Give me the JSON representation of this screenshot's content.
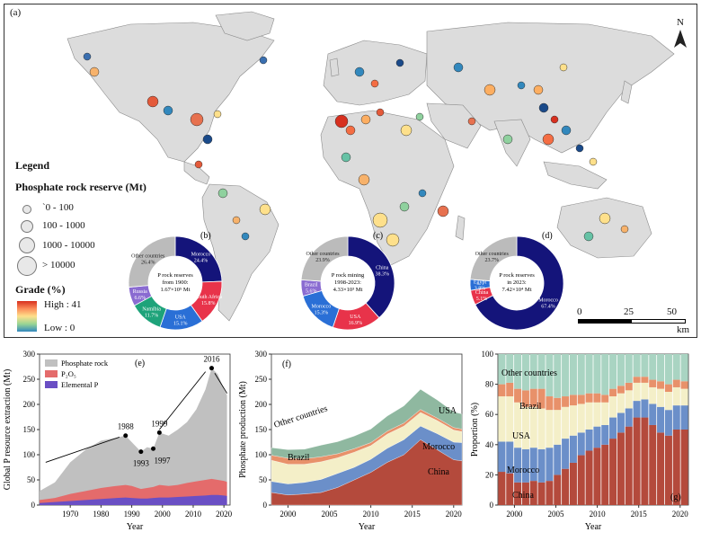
{
  "map": {
    "label": "(a)",
    "north": "N",
    "legend_title": "Legend",
    "reserve_title": "Phosphate rock reserve (Mt)",
    "reserve_classes": [
      "`0 - 100",
      "100 - 1000",
      "1000 - 10000",
      "> 10000"
    ],
    "grade_title": "Grade (%)",
    "grade_high": "High : 41",
    "grade_low": "Low : 0",
    "scale_ticks": [
      "0",
      "25",
      "50"
    ],
    "scale_unit": "km",
    "colors": {
      "land": "#dcdcdc",
      "ocean": "#ffffff",
      "grade_high": "#d7301f",
      "grade_mid": "#fee08b",
      "grade_low": "#3288bd"
    }
  },
  "donuts": [
    {
      "label": "(b)",
      "center_text": [
        "P rock reserves",
        "from 1900:",
        "1.67×10⁵ Mt"
      ],
      "slices": [
        {
          "name": "Morocco",
          "pct": "24.4%",
          "value": 24.4,
          "color": "#14147a"
        },
        {
          "name": "South Africa",
          "pct": "15.8%",
          "value": 15.8,
          "color": "#e8334a"
        },
        {
          "name": "USA",
          "pct": "15.1%",
          "value": 15.1,
          "color": "#2a6fd6"
        },
        {
          "name": "Namibia",
          "pct": "11.7%",
          "value": 11.7,
          "color": "#1ea37a"
        },
        {
          "name": "Russia",
          "pct": "6.6%",
          "value": 6.6,
          "color": "#8a6bd1"
        },
        {
          "name": "Other countries",
          "pct": "26.4%",
          "value": 26.4,
          "color": "#bbbbbb"
        }
      ]
    },
    {
      "label": "(c)",
      "center_text": [
        "P rock mining",
        "1998-2023:",
        "4.33×10³ Mt"
      ],
      "slices": [
        {
          "name": "China",
          "pct": "38.3%",
          "value": 38.3,
          "color": "#14147a"
        },
        {
          "name": "USA",
          "pct": "16.9%",
          "value": 16.9,
          "color": "#e8334a"
        },
        {
          "name": "Morocco",
          "pct": "15.3%",
          "value": 15.3,
          "color": "#2a6fd6"
        },
        {
          "name": "Brazil",
          "pct": "5.6%",
          "value": 5.6,
          "color": "#8a6bd1"
        },
        {
          "name": "Other countries",
          "pct": "23.9%",
          "value": 23.9,
          "color": "#bbbbbb"
        }
      ]
    },
    {
      "label": "(d)",
      "center_text": [
        "P rock reserves",
        "in 2023:",
        "7.42×10⁴ Mt"
      ],
      "slices": [
        {
          "name": "Morocco",
          "pct": "67.4%",
          "value": 67.4,
          "color": "#14147a"
        },
        {
          "name": "China",
          "pct": "5.1%",
          "value": 5.1,
          "color": "#e8334a"
        },
        {
          "name": "Egypt",
          "pct": "3.8%",
          "value": 3.8,
          "color": "#2a6fd6"
        },
        {
          "name": "Other countries",
          "pct": "23.7%",
          "value": 23.7,
          "color": "#bbbbbb"
        }
      ]
    }
  ],
  "chart_data": [
    {
      "panel": "(e)",
      "type": "area",
      "ylabel": "Global P resource extraction (Mt)",
      "xlabel": "Year",
      "xlim": [
        1960,
        2022
      ],
      "ylim": [
        0,
        300
      ],
      "xticks": [
        1970,
        1980,
        1990,
        2000,
        2010,
        2020
      ],
      "yticks": [
        0,
        50,
        100,
        150,
        200,
        250,
        300
      ],
      "legend": [
        "Phosphate rock",
        "P₂O₅",
        "Elemental P"
      ],
      "colors": [
        "#c0c0c0",
        "#e46b6b",
        "#6a4fc4"
      ],
      "x": [
        1960,
        1965,
        1970,
        1975,
        1980,
        1985,
        1988,
        1990,
        1993,
        1995,
        1997,
        1999,
        2002,
        2005,
        2008,
        2011,
        2014,
        2016,
        2018,
        2020,
        2021
      ],
      "series": [
        {
          "name": "Phosphate rock",
          "values": [
            28,
            45,
            85,
            110,
            128,
            134,
            138,
            125,
            106,
            115,
            112,
            144,
            138,
            150,
            165,
            190,
            230,
            272,
            260,
            230,
            218
          ]
        },
        {
          "name": "P₂O₅",
          "values": [
            10,
            14,
            22,
            28,
            34,
            38,
            40,
            38,
            32,
            34,
            36,
            40,
            38,
            40,
            44,
            47,
            50,
            52,
            50,
            48,
            46
          ]
        },
        {
          "name": "Elemental P",
          "values": [
            4,
            6,
            8,
            10,
            12,
            14,
            15,
            14,
            13,
            13,
            14,
            15,
            15,
            16,
            17,
            18,
            19,
            20,
            20,
            19,
            18
          ]
        }
      ],
      "annotations": [
        {
          "text": "1988",
          "x": 1988,
          "y": 138
        },
        {
          "text": "1993",
          "x": 1993,
          "y": 106
        },
        {
          "text": "1997",
          "x": 1997,
          "y": 112
        },
        {
          "text": "1999",
          "x": 1999,
          "y": 144
        },
        {
          "text": "2016",
          "x": 2016,
          "y": 272
        }
      ]
    },
    {
      "panel": "(f)",
      "type": "area",
      "ylabel": "Phosphate production (Mt)",
      "xlabel": "Year",
      "xlim": [
        1998,
        2021
      ],
      "ylim": [
        0,
        300
      ],
      "xticks": [
        2000,
        2005,
        2010,
        2015,
        2020
      ],
      "yticks": [
        0,
        50,
        100,
        150,
        200,
        250,
        300
      ],
      "x": [
        1998,
        2000,
        2002,
        2004,
        2006,
        2008,
        2010,
        2012,
        2014,
        2016,
        2018,
        2020,
        2021
      ],
      "series": [
        {
          "name": "China",
          "values": [
            25,
            20,
            22,
            25,
            35,
            50,
            65,
            85,
            100,
            130,
            110,
            90,
            88
          ]
        },
        {
          "name": "Morocco",
          "values": [
            22,
            22,
            23,
            26,
            28,
            25,
            26,
            28,
            30,
            27,
            32,
            35,
            36
          ]
        },
        {
          "name": "USA",
          "values": [
            42,
            39,
            36,
            35,
            31,
            30,
            27,
            28,
            27,
            27,
            26,
            24,
            22
          ]
        },
        {
          "name": "Brazil",
          "values": [
            10,
            12,
            11,
            10,
            8,
            7,
            6,
            6,
            6,
            6,
            5,
            5,
            5
          ]
        },
        {
          "name": "Other countries",
          "values": [
            15,
            17,
            19,
            23,
            24,
            25,
            27,
            30,
            34,
            40,
            36,
            31,
            30
          ]
        }
      ],
      "labels": [
        "Other countries",
        "Brazil",
        "USA",
        "Morocco",
        "China"
      ],
      "colors": [
        "#b44a3c",
        "#6b8fc9",
        "#f4efc8",
        "#e8916a",
        "#8fb8a0"
      ]
    },
    {
      "panel": "(g)",
      "type": "bar",
      "ylabel": "Proportion (%)",
      "xlabel": "Year",
      "xlim": [
        1998,
        2021
      ],
      "ylim": [
        0,
        100
      ],
      "xticks": [
        2000,
        2005,
        2010,
        2015,
        2020
      ],
      "yticks": [
        0,
        20,
        40,
        60,
        80,
        100
      ],
      "categories": [
        1998,
        1999,
        2000,
        2001,
        2002,
        2003,
        2004,
        2005,
        2006,
        2007,
        2008,
        2009,
        2010,
        2011,
        2012,
        2013,
        2014,
        2015,
        2016,
        2017,
        2018,
        2019,
        2020,
        2021
      ],
      "series": [
        {
          "name": "China",
          "values": [
            22,
            21,
            15,
            15,
            16,
            15,
            16,
            20,
            24,
            28,
            33,
            36,
            38,
            40,
            44,
            48,
            52,
            58,
            58,
            53,
            48,
            46,
            50,
            50
          ]
        },
        {
          "name": "Morocco",
          "values": [
            20,
            21,
            23,
            22,
            22,
            22,
            22,
            20,
            20,
            18,
            15,
            14,
            14,
            13,
            14,
            13,
            12,
            11,
            12,
            14,
            17,
            17,
            16,
            16
          ]
        },
        {
          "name": "USA",
          "values": [
            30,
            30,
            30,
            28,
            27,
            27,
            25,
            23,
            21,
            20,
            19,
            18,
            16,
            15,
            14,
            13,
            12,
            12,
            11,
            11,
            12,
            12,
            12,
            11
          ]
        },
        {
          "name": "Brazil",
          "values": [
            8,
            9,
            9,
            11,
            12,
            13,
            9,
            8,
            7,
            7,
            6,
            6,
            6,
            5,
            5,
            5,
            5,
            4,
            4,
            5,
            5,
            5,
            5,
            5
          ]
        },
        {
          "name": "Other countries",
          "values": [
            20,
            19,
            23,
            24,
            23,
            23,
            28,
            29,
            28,
            27,
            27,
            26,
            26,
            27,
            23,
            21,
            19,
            15,
            15,
            17,
            18,
            20,
            17,
            18
          ]
        }
      ],
      "labels": [
        "Other countries",
        "Brazil",
        "USA",
        "Morocco",
        "China"
      ],
      "colors": [
        "#b44a3c",
        "#6b8fc9",
        "#f4efc8",
        "#e8916a",
        "#a9d4c2"
      ]
    }
  ]
}
